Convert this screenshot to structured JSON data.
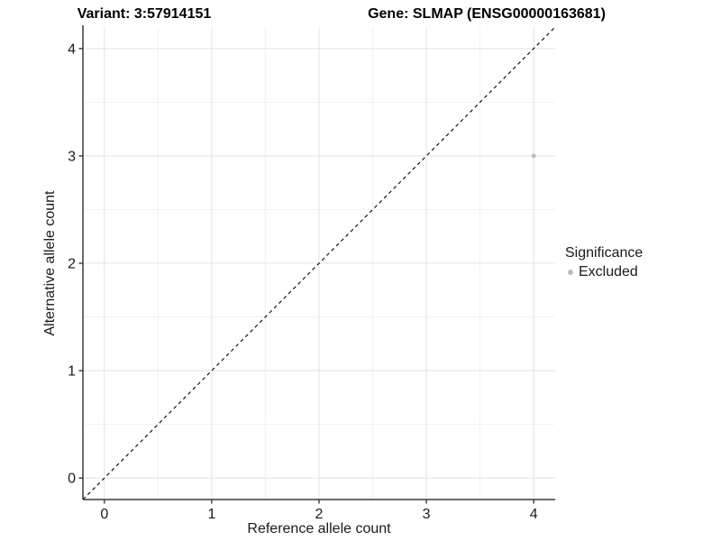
{
  "header": {
    "left_title": "Variant: 3:57914151",
    "right_title": "Gene: SLMAP (ENSG00000163681)"
  },
  "chart_data": {
    "type": "scatter",
    "xlabel": "Reference allele count",
    "ylabel": "Alternative allele count",
    "xlim": [
      -0.2,
      4.2
    ],
    "ylim": [
      -0.2,
      4.2
    ],
    "x_ticks": [
      0,
      1,
      2,
      3,
      4
    ],
    "y_ticks": [
      0,
      1,
      2,
      3,
      4
    ],
    "x_minor_ticks": [
      0.5,
      1.5,
      2.5,
      3.5
    ],
    "y_minor_ticks": [
      0.5,
      1.5,
      2.5,
      3.5
    ],
    "grid": {
      "major_color": "#e4e4e4",
      "minor_color": "#f2f2f2",
      "on": true
    },
    "points": [
      {
        "x": 4,
        "y": 3,
        "series": "Excluded",
        "color": "#bdbdbd",
        "radius": 2.5
      }
    ],
    "reference_line": {
      "type": "identity",
      "from": [
        -0.2,
        -0.2
      ],
      "to": [
        4.2,
        4.2
      ],
      "style": "dashed",
      "color": "#000000"
    },
    "axis_line_color": "#383838",
    "tick_label_color": "#1a1a1a",
    "legend": {
      "position": "right",
      "title": "Significance",
      "items": [
        {
          "label": "Excluded",
          "color": "#bdbdbd"
        }
      ]
    }
  }
}
